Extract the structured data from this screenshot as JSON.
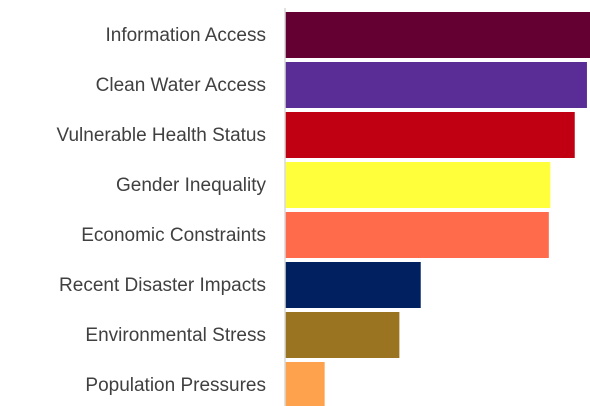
{
  "chart_data": {
    "type": "bar",
    "orientation": "horizontal",
    "categories": [
      "Information Access",
      "Clean Water Access",
      "Vulnerable Health Status",
      "Gender Inequality",
      "Economic Constraints",
      "Recent Disaster Impacts",
      "Environmental Stress",
      "Population Pressures"
    ],
    "values": [
      100,
      99,
      95,
      87,
      86.5,
      44.5,
      37.5,
      13
    ],
    "colors": [
      "#640032",
      "#5a2d96",
      "#c00012",
      "#ffff3c",
      "#ff6b4b",
      "#002060",
      "#9b7422",
      "#ffa24d"
    ],
    "xlim": [
      0,
      100
    ],
    "title": "",
    "xlabel": "",
    "ylabel": "",
    "grid": false,
    "legend": "none"
  }
}
